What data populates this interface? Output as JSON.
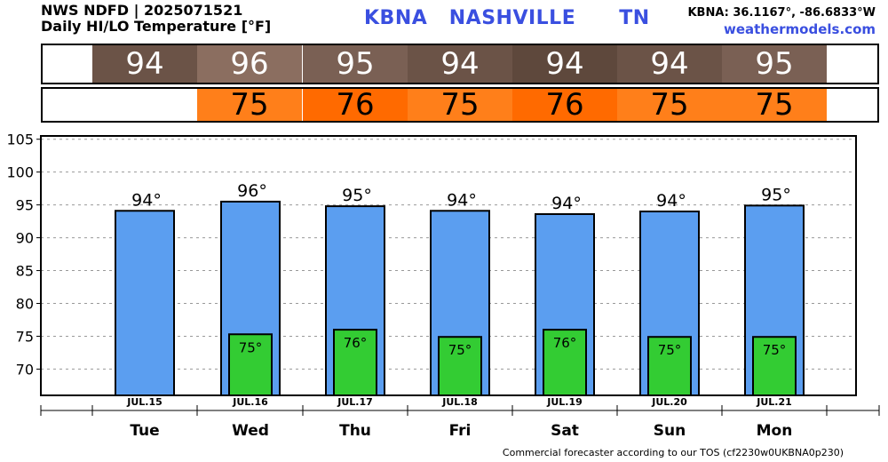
{
  "header": {
    "line1": "NWS NDFD | 2025071521",
    "line2": "Daily HI/LO Temperature [°F]",
    "station": "KBNA",
    "city": "NASHVILLE",
    "state": "TN",
    "coords": "KBNA: 36.1167°, -86.6833°W",
    "site": "weathermodels.com"
  },
  "hi_strip": {
    "values": [
      "94",
      "96",
      "95",
      "94",
      "94",
      "94",
      "95"
    ],
    "colors": [
      "#6b5347",
      "#8b6e60",
      "#7a6054",
      "#6b5347",
      "#5e483c",
      "#6b5347",
      "#7a6054"
    ]
  },
  "lo_strip": {
    "values": [
      "",
      "75",
      "76",
      "75",
      "76",
      "75",
      "75"
    ],
    "colors": [
      "#ffffff",
      "#ff7f1a",
      "#ff6a00",
      "#ff7f1a",
      "#ff6a00",
      "#ff7f1a",
      "#ff7f1a"
    ]
  },
  "chart_data": {
    "type": "bar",
    "categories": [
      "Tue",
      "Wed",
      "Thu",
      "Fri",
      "Sat",
      "Sun",
      "Mon"
    ],
    "dates": [
      "JUL.15",
      "JUL.16",
      "JUL.17",
      "JUL.18",
      "JUL.19",
      "JUL.20",
      "JUL.21"
    ],
    "series": [
      {
        "values": [
          94.1,
          95.5,
          94.8,
          94.1,
          93.6,
          94.0,
          94.9
        ],
        "labels": [
          "94°",
          "96°",
          "95°",
          "94°",
          "94°",
          "94°",
          "95°"
        ],
        "color": "#5b9ef0"
      },
      {
        "values": [
          null,
          75.3,
          76.0,
          74.9,
          76.0,
          74.9,
          74.9
        ],
        "labels": [
          "",
          "75°",
          "76°",
          "75°",
          "76°",
          "75°",
          "75°"
        ],
        "color": "#33cc33"
      }
    ],
    "ylim": [
      66,
      105.5
    ],
    "yticks": [
      "70",
      "75",
      "80",
      "85",
      "90",
      "95",
      "100",
      "105"
    ],
    "grid": true
  },
  "footer": "Commercial forecaster according to our TOS (cf2230w0UKBNA0p230)"
}
